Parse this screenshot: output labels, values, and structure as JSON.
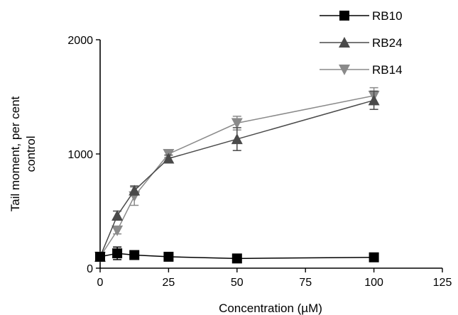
{
  "chart_data": {
    "type": "line",
    "xlabel": "Concentration (µM)",
    "ylabel_lines": [
      "Tail moment, per cent",
      "control"
    ],
    "xlim": [
      0,
      125
    ],
    "ylim": [
      0,
      2000
    ],
    "x_ticks": [
      0,
      25,
      50,
      75,
      100,
      125
    ],
    "y_ticks": [
      0,
      1000,
      2000
    ],
    "legend_placement": "top-right",
    "grid": false,
    "series": [
      {
        "name": "RB10",
        "marker": "square",
        "color": "#000000",
        "x": [
          0,
          6.25,
          12.5,
          25,
          50,
          100
        ],
        "y": [
          100,
          130,
          115,
          100,
          85,
          95
        ],
        "err": [
          25,
          55,
          30,
          15,
          10,
          10
        ]
      },
      {
        "name": "RB24",
        "marker": "triangle-up",
        "color": "#4a4a4a",
        "x": [
          0,
          6.25,
          12.5,
          25,
          50,
          100
        ],
        "y": [
          100,
          460,
          680,
          960,
          1130,
          1470
        ],
        "err": [
          20,
          40,
          40,
          30,
          100,
          80
        ]
      },
      {
        "name": "RB14",
        "marker": "triangle-down",
        "color": "#8a8a8a",
        "x": [
          0,
          6.25,
          12.5,
          25,
          50,
          100
        ],
        "y": [
          100,
          330,
          630,
          1000,
          1270,
          1510
        ],
        "err": [
          20,
          30,
          80,
          30,
          60,
          70
        ]
      }
    ]
  }
}
